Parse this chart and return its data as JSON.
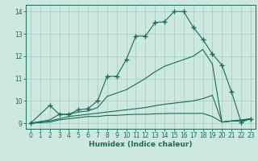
{
  "xlabel": "Humidex (Indice chaleur)",
  "bg_color": "#cce8e0",
  "grid_color": "#aacfc8",
  "line_color": "#1a6b5a",
  "xlim": [
    -0.5,
    23.5
  ],
  "ylim": [
    8.75,
    14.3
  ],
  "yticks": [
    9,
    10,
    11,
    12,
    13,
    14
  ],
  "xticks": [
    0,
    1,
    2,
    3,
    4,
    5,
    6,
    7,
    8,
    9,
    10,
    11,
    12,
    13,
    14,
    15,
    16,
    17,
    18,
    19,
    20,
    21,
    22,
    23
  ],
  "lines": [
    {
      "x": [
        0,
        2,
        3,
        4,
        5,
        6,
        7,
        8,
        9,
        10,
        11,
        12,
        13,
        14,
        15,
        16,
        17,
        18,
        19,
        20,
        21,
        22,
        23
      ],
      "y": [
        9.0,
        9.8,
        9.4,
        9.4,
        9.6,
        9.65,
        10.0,
        11.1,
        11.1,
        11.85,
        12.9,
        12.9,
        13.5,
        13.55,
        14.0,
        14.0,
        13.3,
        12.75,
        12.1,
        11.6,
        10.4,
        9.05,
        9.2
      ],
      "marker": "+"
    },
    {
      "x": [
        0,
        2,
        3,
        4,
        5,
        6,
        7,
        8,
        9,
        10,
        11,
        12,
        13,
        14,
        15,
        16,
        17,
        18,
        19,
        20,
        21,
        22,
        23
      ],
      "y": [
        9.0,
        9.15,
        9.4,
        9.4,
        9.5,
        9.55,
        9.7,
        10.2,
        10.35,
        10.5,
        10.75,
        11.0,
        11.3,
        11.55,
        11.7,
        11.85,
        12.0,
        12.3,
        11.65,
        9.05,
        9.1,
        9.15,
        9.2
      ],
      "marker": null
    },
    {
      "x": [
        0,
        2,
        3,
        4,
        5,
        6,
        7,
        8,
        9,
        10,
        11,
        12,
        13,
        14,
        15,
        16,
        17,
        18,
        19,
        20,
        21,
        22,
        23
      ],
      "y": [
        9.0,
        9.1,
        9.2,
        9.3,
        9.35,
        9.4,
        9.45,
        9.5,
        9.55,
        9.6,
        9.65,
        9.7,
        9.78,
        9.85,
        9.9,
        9.95,
        10.0,
        10.1,
        10.25,
        9.05,
        9.1,
        9.1,
        9.2
      ],
      "marker": null
    },
    {
      "x": [
        0,
        2,
        3,
        4,
        5,
        6,
        7,
        8,
        9,
        10,
        11,
        12,
        13,
        14,
        15,
        16,
        17,
        18,
        19,
        20,
        21,
        22,
        23
      ],
      "y": [
        9.0,
        9.05,
        9.15,
        9.2,
        9.25,
        9.3,
        9.3,
        9.35,
        9.35,
        9.38,
        9.4,
        9.4,
        9.42,
        9.43,
        9.44,
        9.44,
        9.44,
        9.44,
        9.3,
        9.05,
        9.1,
        9.1,
        9.2
      ],
      "marker": null
    }
  ]
}
